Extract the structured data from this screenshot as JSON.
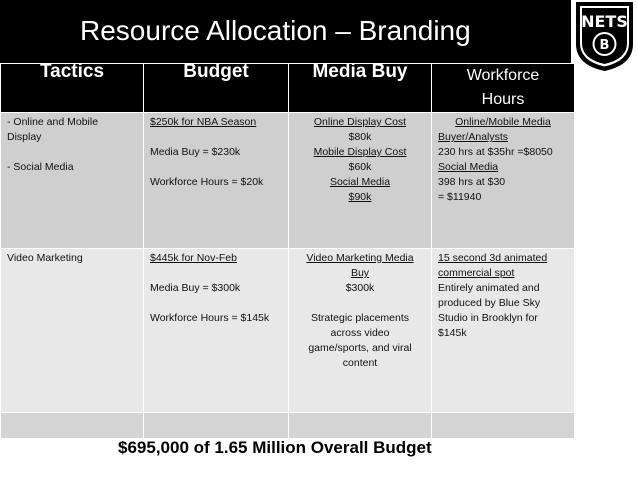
{
  "title": "Resource Allocation – Branding",
  "logo": {
    "text": "NETS",
    "icon": "brooklyn-nets-logo"
  },
  "headers": {
    "tactics": "Tactics",
    "budget": "Budget",
    "media_buy": "Media Buy",
    "workforce_line1": "Workforce",
    "workforce_line2": "Hours"
  },
  "rows": [
    {
      "tactics": [
        "- Online and Mobile",
        "Display",
        "- Social Media"
      ],
      "budget": [
        "$250k for NBA Season",
        "Media Buy = $230k",
        "Workforce Hours = $20k"
      ],
      "media_buy": [
        "Online Display Cost",
        "$80k",
        "Mobile Display Cost",
        "$60k",
        "Social Media",
        "$90k"
      ],
      "workforce": [
        "Online/Mobile Media",
        "Buyer/Analysts",
        "230 hrs at $35hr =$8050",
        "Social Media",
        "398 hrs at $30",
        "= $11940"
      ]
    },
    {
      "tactics": [
        "Video Marketing"
      ],
      "budget": [
        "$445k for Nov-Feb",
        "Media Buy = $300k",
        "Workforce Hours = $145k"
      ],
      "media_buy": [
        "Video Marketing Media",
        "Buy",
        "$300k",
        "Strategic placements",
        "across video",
        "game/sports, and viral",
        "content"
      ],
      "workforce": [
        "15 second 3d animated",
        "commercial spot",
        "Entirely animated and",
        "produced by Blue Sky",
        "Studio in Brooklyn for",
        "$145k"
      ]
    }
  ],
  "summary": "$695,000 of 1.65 Million Overall Budget"
}
